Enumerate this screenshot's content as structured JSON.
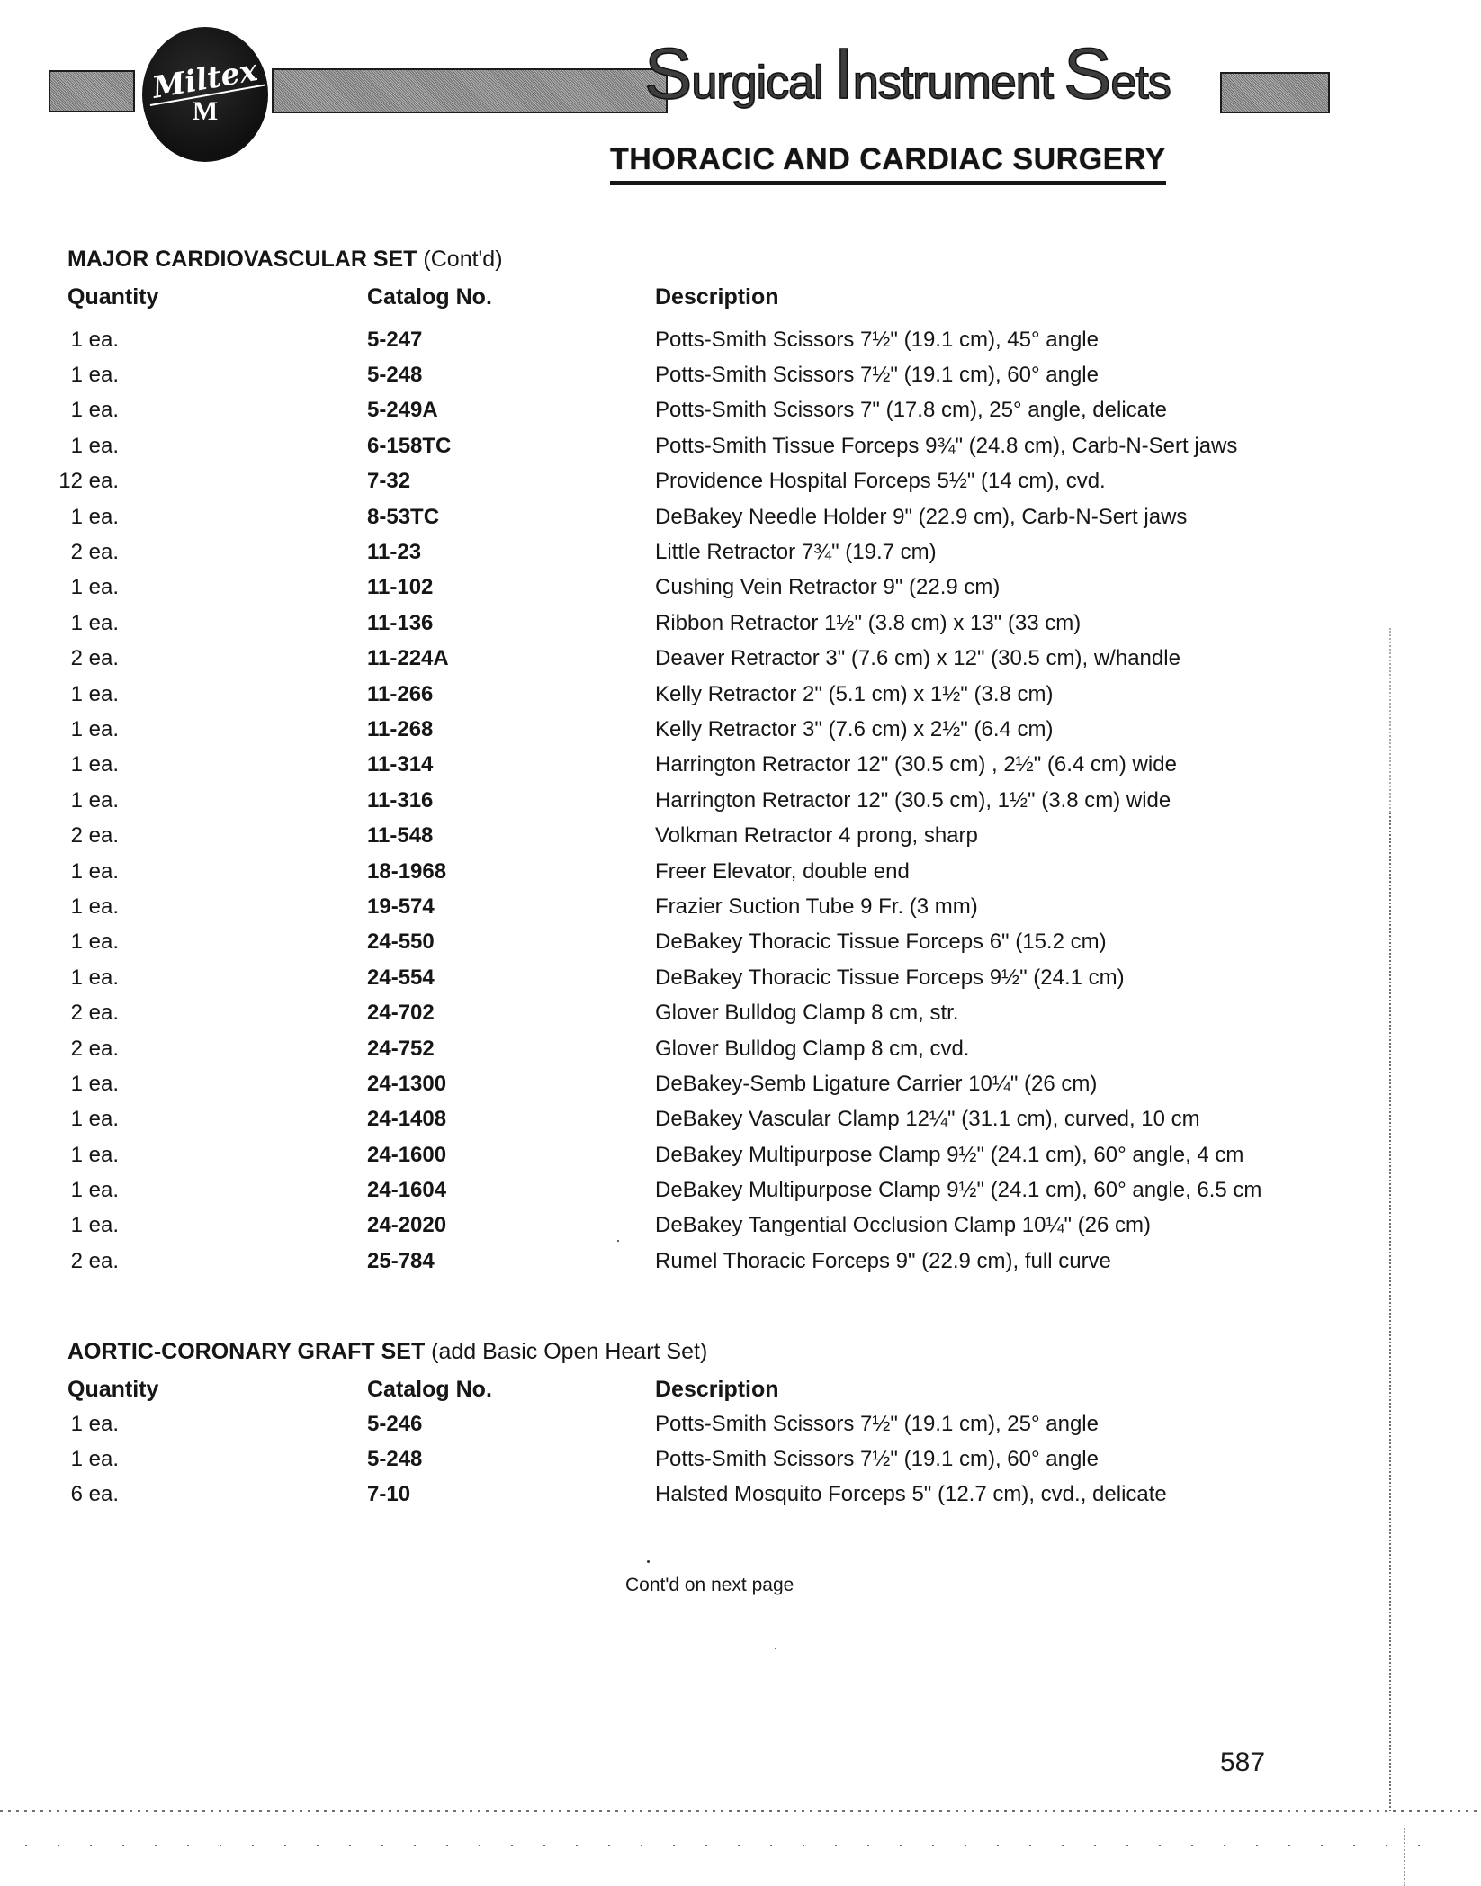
{
  "header": {
    "brand": "Miltex",
    "brand_monogram": "M",
    "title": "Surgical Instrument Sets",
    "subtitle": "THORACIC AND CARDIAC SURGERY"
  },
  "sections": [
    {
      "title": "MAJOR CARDIOVASCULAR SET",
      "title_suffix": "(Cont'd)",
      "columns": [
        "Quantity",
        "Catalog No.",
        "Description"
      ],
      "rows": [
        {
          "qty": "1 ea.",
          "catalog": "5-247",
          "description": "Potts-Smith Scissors 7½\" (19.1 cm), 45° angle"
        },
        {
          "qty": "1 ea.",
          "catalog": "5-248",
          "description": "Potts-Smith Scissors 7½\" (19.1 cm), 60° angle"
        },
        {
          "qty": "1 ea.",
          "catalog": "5-249A",
          "description": "Potts-Smith Scissors 7\" (17.8 cm), 25° angle, delicate"
        },
        {
          "qty": "1 ea.",
          "catalog": "6-158TC",
          "description": "Potts-Smith Tissue Forceps 9¾\" (24.8 cm), Carb-N-Sert jaws"
        },
        {
          "qty": "12 ea.",
          "catalog": "7-32",
          "description": "Providence Hospital Forceps 5½\" (14 cm), cvd."
        },
        {
          "qty": "1 ea.",
          "catalog": "8-53TC",
          "description": "DeBakey Needle Holder 9\" (22.9 cm), Carb-N-Sert jaws"
        },
        {
          "qty": "2 ea.",
          "catalog": "11-23",
          "description": "Little Retractor 7¾\" (19.7 cm)"
        },
        {
          "qty": "1 ea.",
          "catalog": "11-102",
          "description": "Cushing Vein Retractor 9\" (22.9 cm)"
        },
        {
          "qty": "1 ea.",
          "catalog": "11-136",
          "description": "Ribbon Retractor 1½\" (3.8 cm) x 13\" (33 cm)"
        },
        {
          "qty": "2 ea.",
          "catalog": "11-224A",
          "description": "Deaver Retractor 3\" (7.6 cm) x 12\" (30.5 cm), w/handle"
        },
        {
          "qty": "1 ea.",
          "catalog": "11-266",
          "description": "Kelly Retractor 2\" (5.1 cm) x 1½\" (3.8 cm)"
        },
        {
          "qty": "1 ea.",
          "catalog": "11-268",
          "description": "Kelly Retractor 3\" (7.6 cm) x 2½\" (6.4 cm)"
        },
        {
          "qty": "1 ea.",
          "catalog": "11-314",
          "description": "Harrington Retractor 12\" (30.5 cm) , 2½\" (6.4 cm) wide"
        },
        {
          "qty": "1 ea.",
          "catalog": "11-316",
          "description": "Harrington Retractor 12\" (30.5 cm), 1½\" (3.8 cm) wide"
        },
        {
          "qty": "2 ea.",
          "catalog": "11-548",
          "description": "Volkman Retractor 4 prong, sharp"
        },
        {
          "qty": "1 ea.",
          "catalog": "18-1968",
          "description": "Freer Elevator, double end"
        },
        {
          "qty": "1 ea.",
          "catalog": "19-574",
          "description": "Frazier Suction Tube 9 Fr. (3 mm)"
        },
        {
          "qty": "1 ea.",
          "catalog": "24-550",
          "description": "DeBakey Thoracic Tissue Forceps 6\" (15.2 cm)"
        },
        {
          "qty": "1 ea.",
          "catalog": "24-554",
          "description": "DeBakey Thoracic Tissue Forceps 9½\" (24.1 cm)"
        },
        {
          "qty": "2 ea.",
          "catalog": "24-702",
          "description": "Glover Bulldog Clamp 8 cm, str."
        },
        {
          "qty": "2 ea.",
          "catalog": "24-752",
          "description": "Glover Bulldog Clamp 8 cm, cvd."
        },
        {
          "qty": "1 ea.",
          "catalog": "24-1300",
          "description": "DeBakey-Semb Ligature Carrier 10¼\" (26 cm)"
        },
        {
          "qty": "1 ea.",
          "catalog": "24-1408",
          "description": "DeBakey Vascular Clamp 12¼\" (31.1 cm), curved, 10 cm"
        },
        {
          "qty": "1 ea.",
          "catalog": "24-1600",
          "description": "DeBakey Multipurpose Clamp 9½\" (24.1 cm), 60° angle, 4 cm"
        },
        {
          "qty": "1 ea.",
          "catalog": "24-1604",
          "description": "DeBakey Multipurpose Clamp 9½\" (24.1 cm), 60° angle, 6.5 cm"
        },
        {
          "qty": "1 ea.",
          "catalog": "24-2020",
          "description": "DeBakey Tangential Occlusion Clamp 10¼\" (26 cm)"
        },
        {
          "qty": "2 ea.",
          "catalog": "25-784",
          "description": "Rumel Thoracic Forceps 9\" (22.9 cm), full curve"
        }
      ]
    },
    {
      "title": "AORTIC-CORONARY GRAFT SET",
      "title_suffix": "(add Basic Open Heart Set)",
      "columns": [
        "Quantity",
        "Catalog No.",
        "Description"
      ],
      "rows": [
        {
          "qty": "1 ea.",
          "catalog": "5-246",
          "description": "Potts-Smith Scissors 7½\" (19.1 cm), 25° angle"
        },
        {
          "qty": "1 ea.",
          "catalog": "5-248",
          "description": "Potts-Smith Scissors 7½\" (19.1 cm), 60° angle"
        },
        {
          "qty": "6 ea.",
          "catalog": "7-10",
          "description": "Halsted Mosquito Forceps 5\" (12.7 cm), cvd., delicate"
        }
      ]
    }
  ],
  "footer": {
    "continuation_note": "Cont'd on next page",
    "page_number": "587"
  }
}
